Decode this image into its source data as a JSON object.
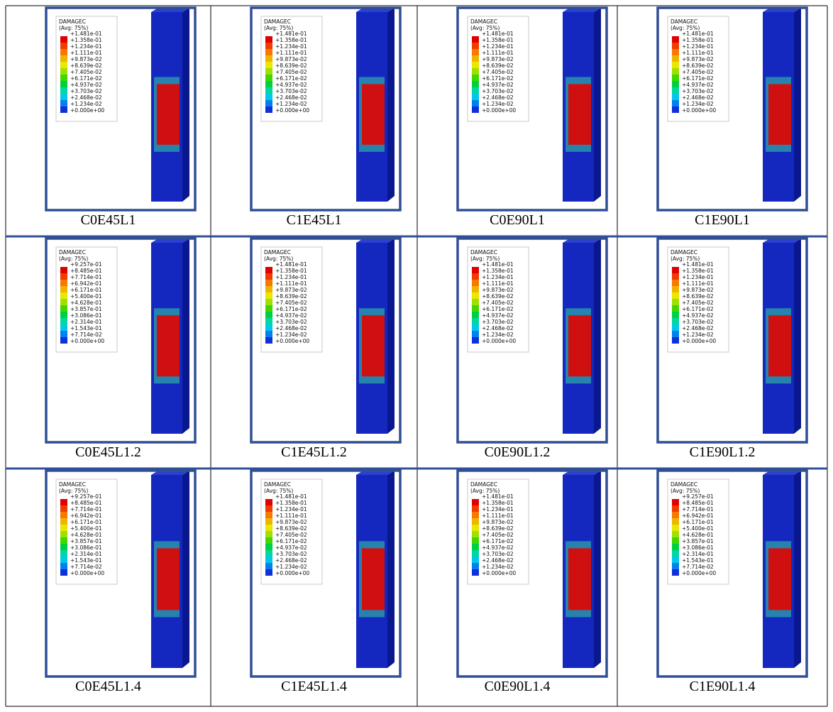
{
  "grid": {
    "rows": [
      [
        {
          "caption": "C0E45L1",
          "legend_title": "DAMAGEC",
          "legend_subtitle": "(Avg: 75%)",
          "legend_values": [
            "+1.481e-01",
            "+1.358e-01",
            "+1.234e-01",
            "+1.111e-01",
            "+9.873e-02",
            "+8.639e-02",
            "+7.405e-02",
            "+6.171e-02",
            "+4.937e-02",
            "+3.703e-02",
            "+2.468e-02",
            "+1.234e-02",
            "+0.000e+00"
          ]
        },
        {
          "caption": "C1E45L1",
          "legend_title": "DAMAGEC",
          "legend_subtitle": "(Avg: 75%)",
          "legend_values": [
            "+1.481e-01",
            "+1.358e-01",
            "+1.234e-01",
            "+1.111e-01",
            "+9.873e-02",
            "+8.639e-02",
            "+7.405e-02",
            "+6.171e-02",
            "+4.937e-02",
            "+3.703e-02",
            "+2.468e-02",
            "+1.234e-02",
            "+0.000e+00"
          ]
        },
        {
          "caption": "C0E90L1",
          "legend_title": "DAMAGEC",
          "legend_subtitle": "(Avg: 75%)",
          "legend_values": [
            "+1.481e-01",
            "+1.358e-01",
            "+1.234e-01",
            "+1.111e-01",
            "+9.873e-02",
            "+8.639e-02",
            "+7.405e-02",
            "+6.171e-02",
            "+4.937e-02",
            "+3.703e-02",
            "+2.468e-02",
            "+1.234e-02",
            "+0.000e+00"
          ]
        },
        {
          "caption": "C1E90L1",
          "legend_title": "DAMAGEC",
          "legend_subtitle": "(Avg: 75%)",
          "legend_values": [
            "+1.481e-01",
            "+1.358e-01",
            "+1.234e-01",
            "+1.111e-01",
            "+9.873e-02",
            "+8.639e-02",
            "+7.405e-02",
            "+6.171e-02",
            "+4.937e-02",
            "+3.703e-02",
            "+2.468e-02",
            "+1.234e-02",
            "+0.000e+00"
          ]
        }
      ],
      [
        {
          "caption": "C0E45L1.2",
          "legend_title": "DAMAGEC",
          "legend_subtitle": "(Avg: 75%)",
          "legend_values": [
            "+9.257e-01",
            "+8.485e-01",
            "+7.714e-01",
            "+6.942e-01",
            "+6.171e-01",
            "+5.400e-01",
            "+4.628e-01",
            "+3.857e-01",
            "+3.086e-01",
            "+2.314e-01",
            "+1.543e-01",
            "+7.714e-02",
            "+0.000e+00"
          ]
        },
        {
          "caption": "C1E45L1.2",
          "legend_title": "DAMAGEC",
          "legend_subtitle": "(Avg: 75%)",
          "legend_values": [
            "+1.481e-01",
            "+1.358e-01",
            "+1.234e-01",
            "+1.111e-01",
            "+9.873e-02",
            "+8.639e-02",
            "+7.405e-02",
            "+6.171e-02",
            "+4.937e-02",
            "+3.703e-02",
            "+2.468e-02",
            "+1.234e-02",
            "+0.000e+00"
          ]
        },
        {
          "caption": "C0E90L1.2",
          "legend_title": "DAMAGEC",
          "legend_subtitle": "(Avg: 75%)",
          "legend_values": [
            "+1.481e-01",
            "+1.358e-01",
            "+1.234e-01",
            "+1.111e-01",
            "+9.873e-02",
            "+8.639e-02",
            "+7.405e-02",
            "+6.171e-02",
            "+4.937e-02",
            "+3.703e-02",
            "+2.468e-02",
            "+1.234e-02",
            "+0.000e+00"
          ]
        },
        {
          "caption": "C1E90L1.2",
          "legend_title": "DAMAGEC",
          "legend_subtitle": "(Avg: 75%)",
          "legend_values": [
            "+1.481e-01",
            "+1.358e-01",
            "+1.234e-01",
            "+1.111e-01",
            "+9.873e-02",
            "+8.639e-02",
            "+7.405e-02",
            "+6.171e-02",
            "+4.937e-02",
            "+3.703e-02",
            "+2.468e-02",
            "+1.234e-02",
            "+0.000e+00"
          ]
        }
      ],
      [
        {
          "caption": "C0E45L1.4",
          "legend_title": "DAMAGEC",
          "legend_subtitle": "(Avg: 75%)",
          "legend_values": [
            "+9.257e-01",
            "+8.485e-01",
            "+7.714e-01",
            "+6.942e-01",
            "+6.171e-01",
            "+5.400e-01",
            "+4.628e-01",
            "+3.857e-01",
            "+3.086e-01",
            "+2.314e-01",
            "+1.543e-01",
            "+7.714e-02",
            "+0.000e+00"
          ]
        },
        {
          "caption": "C1E45L1.4",
          "legend_title": "DAMAGEC",
          "legend_subtitle": "(Avg: 75%)",
          "legend_values": [
            "+1.481e-01",
            "+1.358e-01",
            "+1.234e-01",
            "+1.111e-01",
            "+9.873e-02",
            "+8.639e-02",
            "+7.405e-02",
            "+6.171e-02",
            "+4.937e-02",
            "+3.703e-02",
            "+2.468e-02",
            "+1.234e-02",
            "+0.000e+00"
          ]
        },
        {
          "caption": "C0E90L1.4",
          "legend_title": "DAMAGEC",
          "legend_subtitle": "(Avg: 75%)",
          "legend_values": [
            "+1.481e-01",
            "+1.358e-01",
            "+1.234e-01",
            "+1.111e-01",
            "+9.873e-02",
            "+8.639e-02",
            "+7.405e-02",
            "+6.171e-02",
            "+4.937e-02",
            "+3.703e-02",
            "+2.468e-02",
            "+1.234e-02",
            "+0.000e+00"
          ]
        },
        {
          "caption": "C1E90L1.4",
          "legend_title": "DAMAGEC",
          "legend_subtitle": "(Avg: 75%)",
          "legend_values": [
            "+9.257e-01",
            "+8.485e-01",
            "+7.714e-01",
            "+6.942e-01",
            "+6.171e-01",
            "+5.400e-01",
            "+4.628e-01",
            "+3.857e-01",
            "+3.086e-01",
            "+2.314e-01",
            "+1.543e-01",
            "+7.714e-02",
            "+0.000e+00"
          ]
        }
      ]
    ]
  }
}
